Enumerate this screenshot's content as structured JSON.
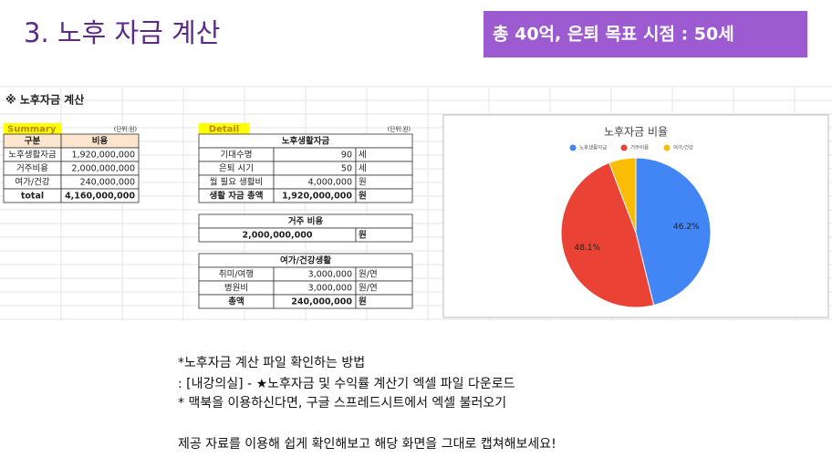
{
  "header": {
    "title": "3. 노후 자금 계산",
    "badge": "총 40억, 은퇴 목표 시점  : 50세"
  },
  "sheet": {
    "title": "※ 노후자금 계산",
    "summary": {
      "label": "Summary",
      "unit": "(단위:원)",
      "columns": [
        "구분",
        "비용"
      ],
      "rows": [
        [
          "노후생활자금",
          "1,920,000,000"
        ],
        [
          "거주비용",
          "2,000,000,000"
        ],
        [
          "여가/건강",
          "240,000,000"
        ],
        [
          "total",
          "4,160,000,000"
        ]
      ]
    },
    "detail": {
      "label": "Detail",
      "unit": "(단위:원)",
      "sections": [
        {
          "title": "노후생활자금",
          "rows": [
            [
              "기대수명",
              "90",
              "세"
            ],
            [
              "은퇴 시기",
              "50",
              "세"
            ],
            [
              "월 필요 생활비",
              "4,000,000",
              "원"
            ],
            [
              "생활 자금 총액",
              "1,920,000,000",
              "원"
            ]
          ]
        },
        {
          "title": "거주 비용",
          "rows": [
            [
              "2,000,000,000",
              "원"
            ]
          ]
        },
        {
          "title": "여가/건강생활",
          "rows": [
            [
              "취미/여행",
              "3,000,000",
              "원/연"
            ],
            [
              "병원비",
              "3,000,000",
              "원/연"
            ],
            [
              "총액",
              "240,000,000",
              "원"
            ]
          ]
        }
      ]
    }
  },
  "chart_data": {
    "type": "pie",
    "title": "노후자금 비율",
    "categories": [
      "노후생활자금",
      "거주비용",
      "여가/건강"
    ],
    "values": [
      46.2,
      48.1,
      5.8
    ],
    "value_labels": [
      "46.2%",
      "48.1%",
      null
    ],
    "colors": [
      "#4285f4",
      "#ea4335",
      "#fbbc04"
    ]
  },
  "notes": [
    "*노후자금 계산 파일 확인하는 방법",
    ": [내강의실] - ★노후자금 및 수익률 계산기 엑셀 파일 다운로드",
    "* 맥북을 이용하신다면, 구글 스프레드시트에서 엑셀 불러오기",
    "제공 자료를 이용해 쉽게 확인해보고 해당 화면을 그대로 캡쳐해보세요!"
  ]
}
